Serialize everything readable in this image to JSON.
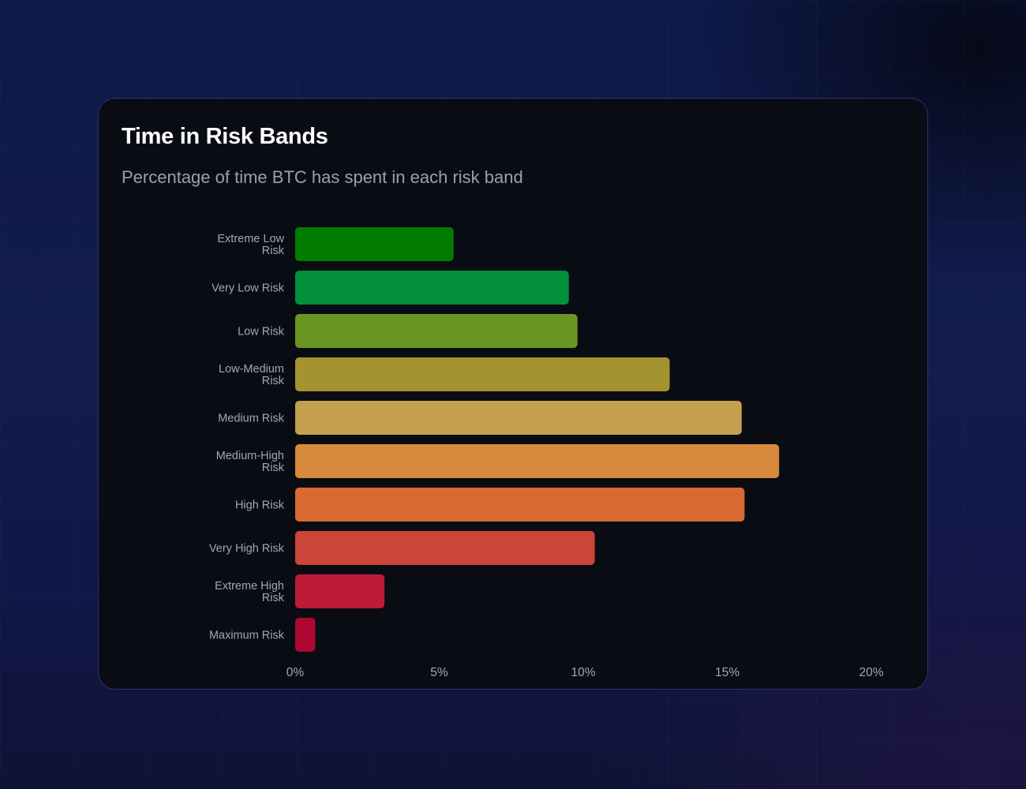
{
  "header": {
    "title": "Time in Risk Bands",
    "subtitle": "Percentage of time BTC has spent in each risk band"
  },
  "chart_data": {
    "type": "bar",
    "orientation": "horizontal",
    "title": "Time in Risk Bands",
    "subtitle": "Percentage of time BTC has spent in each risk band",
    "xlabel": "",
    "ylabel": "",
    "xlim": [
      0,
      20
    ],
    "x_ticks": [
      "0%",
      "5%",
      "10%",
      "15%",
      "20%"
    ],
    "x_tick_values": [
      0,
      5,
      10,
      15,
      20
    ],
    "grid": false,
    "legend": "none",
    "categories": [
      [
        "Extreme Low",
        "Risk"
      ],
      [
        "Very Low Risk"
      ],
      [
        "Low Risk"
      ],
      [
        "Low-Medium",
        "Risk"
      ],
      [
        "Medium Risk"
      ],
      [
        "Medium-High",
        "Risk"
      ],
      [
        "High Risk"
      ],
      [
        "Very High Risk"
      ],
      [
        "Extreme High",
        "Risk"
      ],
      [
        "Maximum Risk"
      ]
    ],
    "values": [
      5.5,
      9.5,
      9.8,
      13.0,
      15.5,
      16.8,
      15.6,
      10.4,
      3.1,
      0.7
    ],
    "colors": [
      "#017c01",
      "#02903a",
      "#6b9522",
      "#a59330",
      "#c49f4e",
      "#d78a3b",
      "#d96a31",
      "#cd4539",
      "#bd1b39",
      "#ad0732"
    ]
  }
}
